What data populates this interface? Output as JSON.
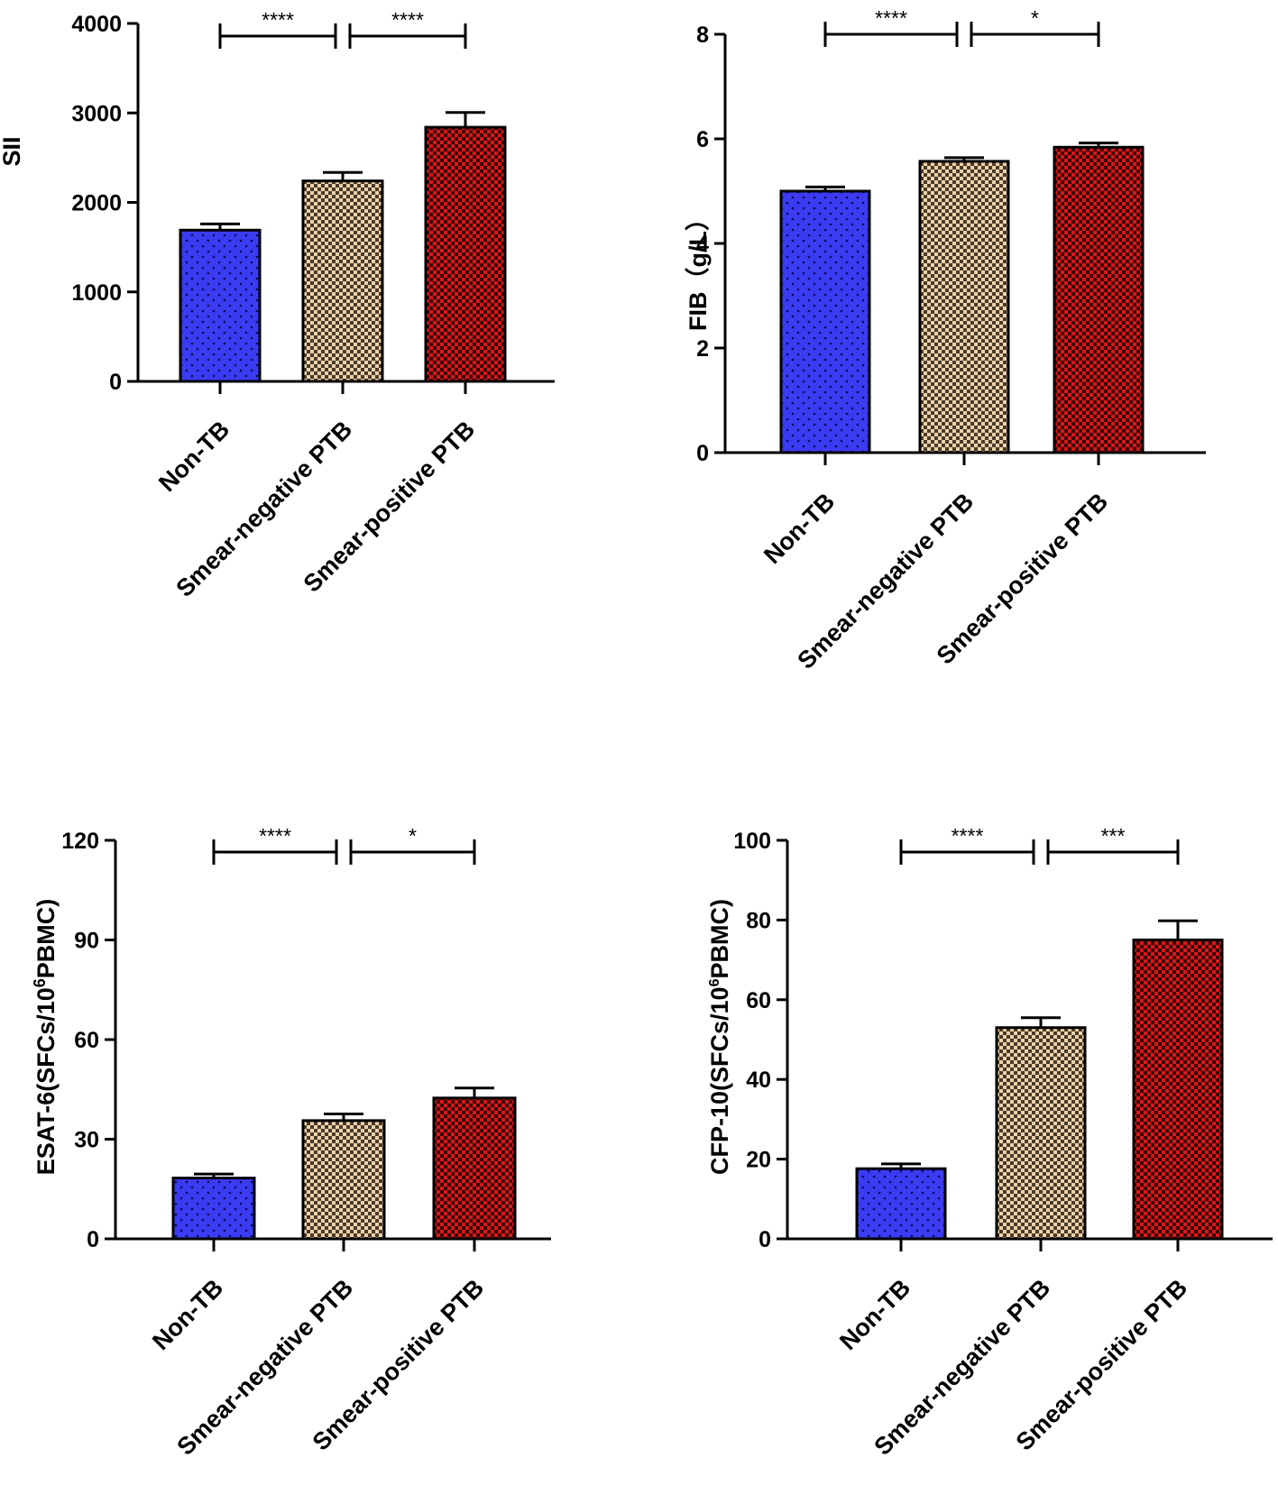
{
  "colors": {
    "non_tb": "#3b3bf2",
    "smear_negative": "#e8caa0",
    "smear_positive": "#cc1414"
  },
  "chart_data": [
    {
      "type": "bar",
      "ylabel": "SII",
      "categories": [
        "Non-TB",
        "Smear-negative PTB",
        "Smear-positive PTB"
      ],
      "values": [
        1690,
        2240,
        2840
      ],
      "errors": [
        70,
        95,
        165
      ],
      "ylim": [
        0,
        4000
      ],
      "yticks": [
        0,
        1000,
        2000,
        3000,
        4000
      ],
      "significance": [
        {
          "from": 0,
          "to": 1,
          "label": "****"
        },
        {
          "from": 1,
          "to": 2,
          "label": "****"
        }
      ]
    },
    {
      "type": "bar",
      "ylabel": "FIB（g/L）",
      "categories": [
        "Non-TB",
        "Smear-negative PTB",
        "Smear-positive PTB"
      ],
      "values": [
        5.0,
        5.57,
        5.84
      ],
      "errors": [
        0.08,
        0.07,
        0.08
      ],
      "ylim": [
        0,
        8
      ],
      "yticks": [
        0,
        2,
        4,
        6,
        8
      ],
      "significance": [
        {
          "from": 0,
          "to": 1,
          "label": "****"
        },
        {
          "from": 1,
          "to": 2,
          "label": "*"
        }
      ]
    },
    {
      "type": "bar",
      "ylabel": "ESAT-6(SFCs/10",
      "ylabel_sup": "6",
      "ylabel_tail": "PBMC)",
      "categories": [
        "Non-TB",
        "Smear-negative PTB",
        "Smear-positive PTB"
      ],
      "values": [
        18.3,
        35.6,
        42.4
      ],
      "errors": [
        1.2,
        2.0,
        3.0
      ],
      "ylim": [
        0,
        120
      ],
      "yticks": [
        0,
        30,
        60,
        90,
        120
      ],
      "significance": [
        {
          "from": 0,
          "to": 1,
          "label": "****"
        },
        {
          "from": 1,
          "to": 2,
          "label": "*"
        }
      ]
    },
    {
      "type": "bar",
      "ylabel": "CFP-10(SFCs/10",
      "ylabel_sup": "6",
      "ylabel_tail": "PBMC)",
      "categories": [
        "Non-TB",
        "Smear-negative PTB",
        "Smear-positive PTB"
      ],
      "values": [
        17.6,
        53.0,
        75.0
      ],
      "errors": [
        1.2,
        2.5,
        4.8
      ],
      "ylim": [
        0,
        100
      ],
      "yticks": [
        0,
        20,
        40,
        60,
        80,
        100
      ],
      "significance": [
        {
          "from": 0,
          "to": 1,
          "label": "****"
        },
        {
          "from": 1,
          "to": 2,
          "label": "***"
        }
      ]
    }
  ]
}
